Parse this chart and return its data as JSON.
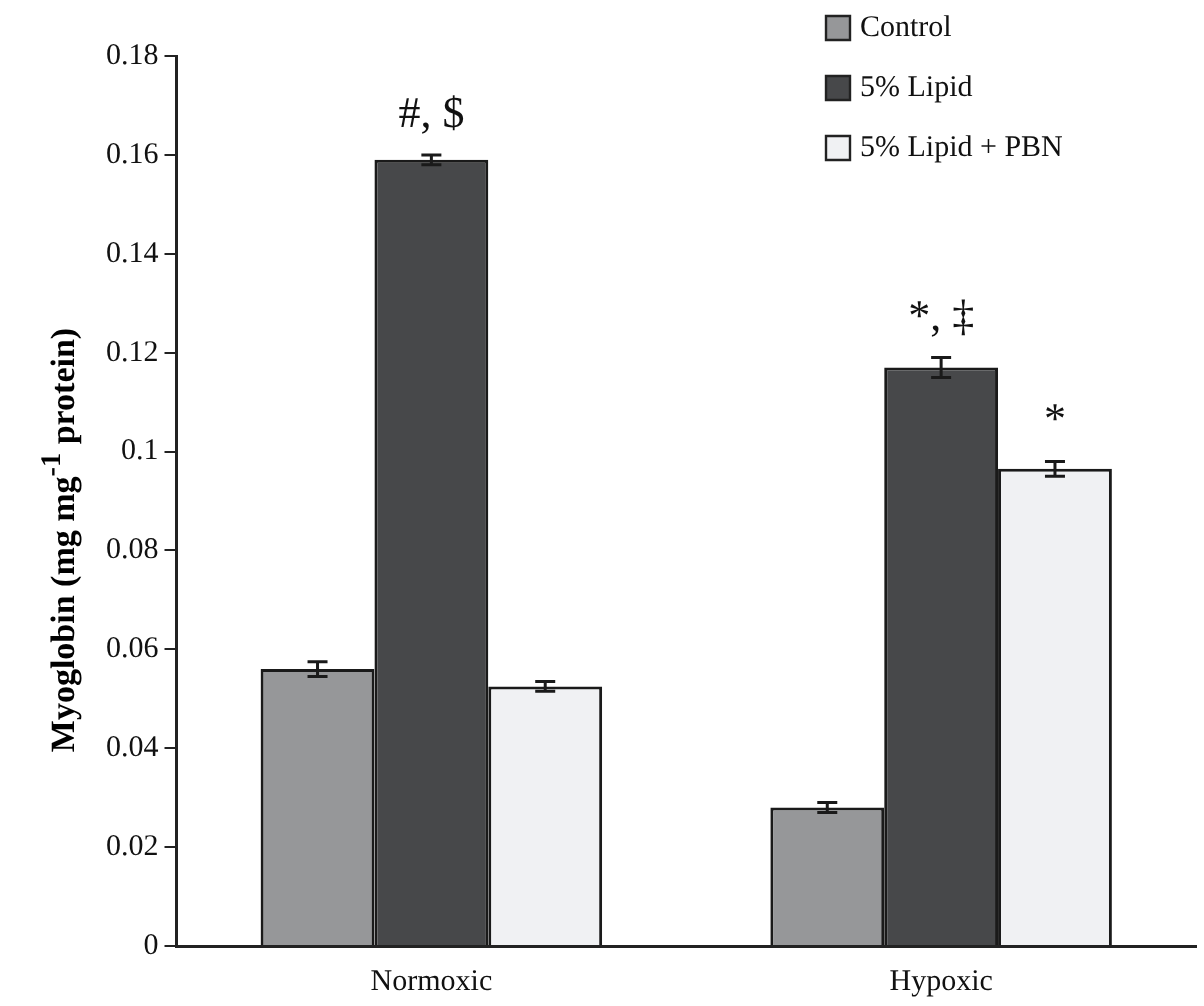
{
  "chart_data": {
    "type": "bar",
    "ylabel": "Myoglobin (mg mg$^{-1}$ protein)",
    "categories": [
      "Normoxic",
      "Hypoxic"
    ],
    "series": [
      {
        "name": "Control",
        "color": "#969799",
        "values": [
          0.056,
          0.028
        ],
        "errors": [
          0.0015,
          0.001
        ]
      },
      {
        "name": "5% Lipid",
        "color": "#47484a",
        "values": [
          0.159,
          0.117
        ],
        "errors": [
          0.001,
          0.002
        ]
      },
      {
        "name": "5% Lipid + PBN",
        "color": "#f0f1f3",
        "values": [
          0.0525,
          0.0965
        ],
        "errors": [
          0.001,
          0.0015
        ]
      }
    ],
    "ylim": [
      0,
      0.18
    ],
    "yticks": [
      0,
      0.02,
      0.04,
      0.06,
      0.08,
      0.1,
      0.12,
      0.14,
      0.16,
      0.18
    ],
    "grid": false,
    "legend": "top right",
    "annotations": [
      {
        "text": "#, $",
        "x": "Normoxic",
        "y": 0.159
      },
      {
        "text": "*, ‡",
        "x": "Hypoxic",
        "y": 0.117
      },
      "*"
    ]
  }
}
